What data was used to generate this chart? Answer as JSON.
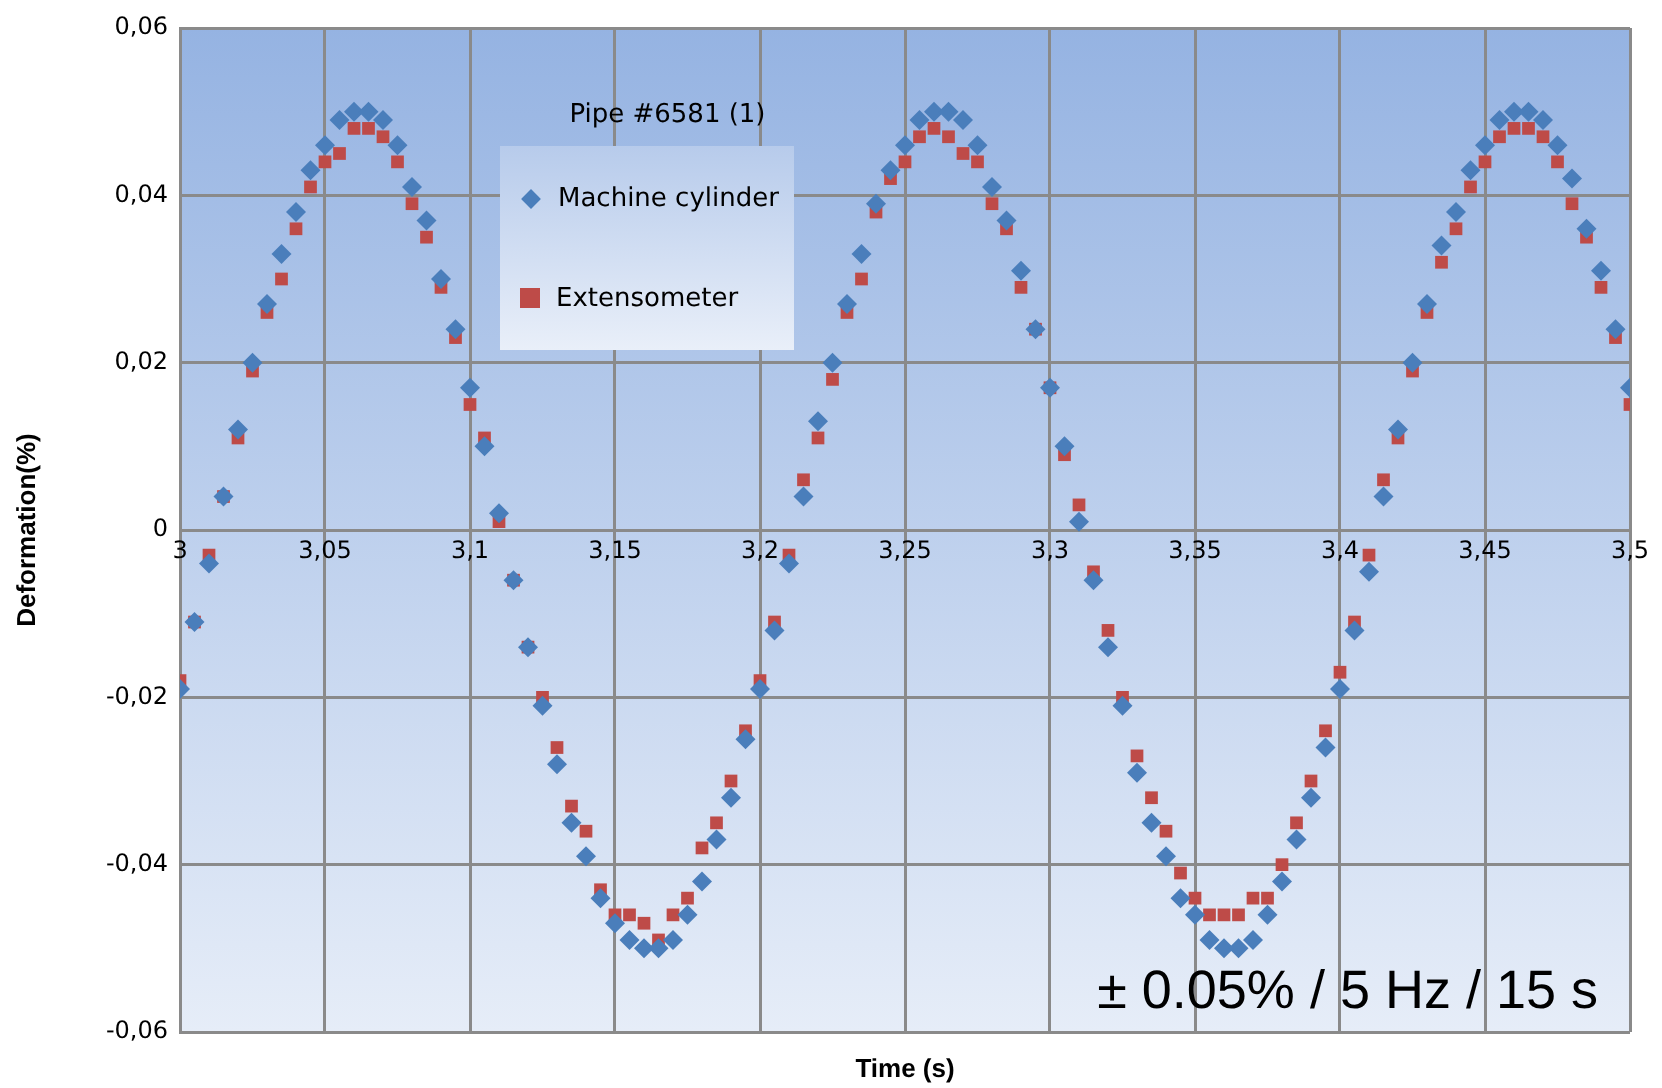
{
  "chart_data": {
    "type": "scatter",
    "xlabel": "Time (s)",
    "ylabel": "Deformation(%)",
    "legend_title": "Pipe #6581 (1)",
    "legend": "top",
    "grid": true,
    "annotations": [
      "± 0.05% / 5 Hz / 15 s"
    ],
    "xlim": [
      3,
      3.5
    ],
    "xticks": [
      3,
      {
        "value": 3.05,
        "label": "3,05"
      },
      {
        "value": 3.1,
        "label": "3,1"
      },
      {
        "value": 3.15,
        "label": "3,15"
      },
      {
        "value": 3.2,
        "label": "3,2"
      },
      {
        "value": 3.25,
        "label": "3,25"
      },
      {
        "value": 3.3,
        "label": "3,3"
      },
      {
        "value": 3.35,
        "label": "3,35"
      },
      {
        "value": 3.4,
        "label": "3,4"
      },
      {
        "value": 3.45,
        "label": "3,45"
      },
      {
        "value": 3.5,
        "label": "3,5"
      }
    ],
    "ylim": [
      -0.06,
      0.06
    ],
    "yticks": [
      {
        "value": -0.06,
        "label": "-0,06"
      },
      {
        "value": -0.04,
        "label": "-0,04"
      },
      {
        "value": -0.02,
        "label": "-0,02"
      },
      0,
      {
        "value": 0.02,
        "label": "0,02"
      },
      {
        "value": 0.04,
        "label": "0,04"
      },
      {
        "value": 0.06,
        "label": "0,06"
      }
    ],
    "x": [
      3,
      3.005,
      3.01,
      3.015,
      3.02,
      3.025,
      3.03,
      3.035,
      3.04,
      3.045,
      3.05,
      3.055,
      3.06,
      3.065,
      3.07,
      3.075,
      3.08,
      3.085,
      3.09,
      3.095,
      3.1,
      3.105,
      3.11,
      3.115,
      3.12,
      3.125,
      3.13,
      3.135,
      3.14,
      3.145,
      3.15,
      3.155,
      3.16,
      3.165,
      3.17,
      3.175,
      3.18,
      3.185,
      3.19,
      3.195,
      3.2,
      3.205,
      3.21,
      3.215,
      3.22,
      3.225,
      3.23,
      3.235,
      3.24,
      3.245,
      3.25,
      3.255,
      3.26,
      3.265,
      3.27,
      3.275,
      3.28,
      3.285,
      3.29,
      3.295,
      3.3,
      3.305,
      3.31,
      3.315,
      3.32,
      3.325,
      3.33,
      3.335,
      3.34,
      3.345,
      3.35,
      3.355,
      3.36,
      3.365,
      3.37,
      3.375,
      3.38,
      3.385,
      3.39,
      3.395,
      3.4,
      3.405,
      3.41,
      3.415,
      3.42,
      3.425,
      3.43,
      3.435,
      3.44,
      3.445,
      3.45,
      3.455,
      3.46,
      3.465,
      3.47,
      3.475,
      3.48,
      3.485,
      3.49,
      3.495,
      3.5
    ],
    "series": [
      {
        "name": "Machine cylinder",
        "color": "#4a7ebb",
        "marker": "diamond",
        "values": [
          -0.019,
          -0.011,
          -0.004,
          0.004,
          0.012,
          0.02,
          0.027,
          0.033,
          0.038,
          0.043,
          0.046,
          0.049,
          0.05,
          0.05,
          0.049,
          0.046,
          0.041,
          0.037,
          0.03,
          0.024,
          0.017,
          0.01,
          0.002,
          -0.006,
          -0.014,
          -0.021,
          -0.028,
          -0.035,
          -0.039,
          -0.044,
          -0.047,
          -0.049,
          -0.05,
          -0.05,
          -0.049,
          -0.046,
          -0.042,
          -0.037,
          -0.032,
          -0.025,
          -0.019,
          -0.012,
          -0.004,
          0.004,
          0.013,
          0.02,
          0.027,
          0.033,
          0.039,
          0.043,
          0.046,
          0.049,
          0.05,
          0.05,
          0.049,
          0.046,
          0.041,
          0.037,
          0.031,
          0.024,
          0.017,
          0.01,
          0.001,
          -0.006,
          -0.014,
          -0.021,
          -0.029,
          -0.035,
          -0.039,
          -0.044,
          -0.046,
          -0.049,
          -0.05,
          -0.05,
          -0.049,
          -0.046,
          -0.042,
          -0.037,
          -0.032,
          -0.026,
          -0.019,
          -0.012,
          -0.005,
          0.004,
          0.012,
          0.02,
          0.027,
          0.034,
          0.038,
          0.043,
          0.046,
          0.049,
          0.05,
          0.05,
          0.049,
          0.046,
          0.042,
          0.036,
          0.031,
          0.024,
          0.017
        ]
      },
      {
        "name": "Extensometer",
        "color": "#be4b48",
        "marker": "square",
        "values": [
          -0.018,
          -0.011,
          -0.003,
          0.004,
          0.011,
          0.019,
          0.026,
          0.03,
          0.036,
          0.041,
          0.044,
          0.045,
          0.048,
          0.048,
          0.047,
          0.044,
          0.039,
          0.035,
          0.029,
          0.023,
          0.015,
          0.011,
          0.001,
          -0.006,
          -0.014,
          -0.02,
          -0.026,
          -0.033,
          -0.036,
          -0.043,
          -0.046,
          -0.046,
          -0.047,
          -0.049,
          -0.046,
          -0.044,
          -0.038,
          -0.035,
          -0.03,
          -0.024,
          -0.018,
          -0.011,
          -0.003,
          0.006,
          0.011,
          0.018,
          0.026,
          0.03,
          0.038,
          0.042,
          0.044,
          0.047,
          0.048,
          0.047,
          0.045,
          0.044,
          0.039,
          0.036,
          0.029,
          0.024,
          0.017,
          0.009,
          0.003,
          -0.005,
          -0.012,
          -0.02,
          -0.027,
          -0.032,
          -0.036,
          -0.041,
          -0.044,
          -0.046,
          -0.046,
          -0.046,
          -0.044,
          -0.044,
          -0.04,
          -0.035,
          -0.03,
          -0.024,
          -0.017,
          -0.011,
          -0.003,
          0.006,
          0.011,
          0.019,
          0.026,
          0.032,
          0.036,
          0.041,
          0.044,
          0.047,
          0.048,
          0.048,
          0.047,
          0.044,
          0.039,
          0.035,
          0.029,
          0.023,
          0.015
        ]
      }
    ]
  }
}
